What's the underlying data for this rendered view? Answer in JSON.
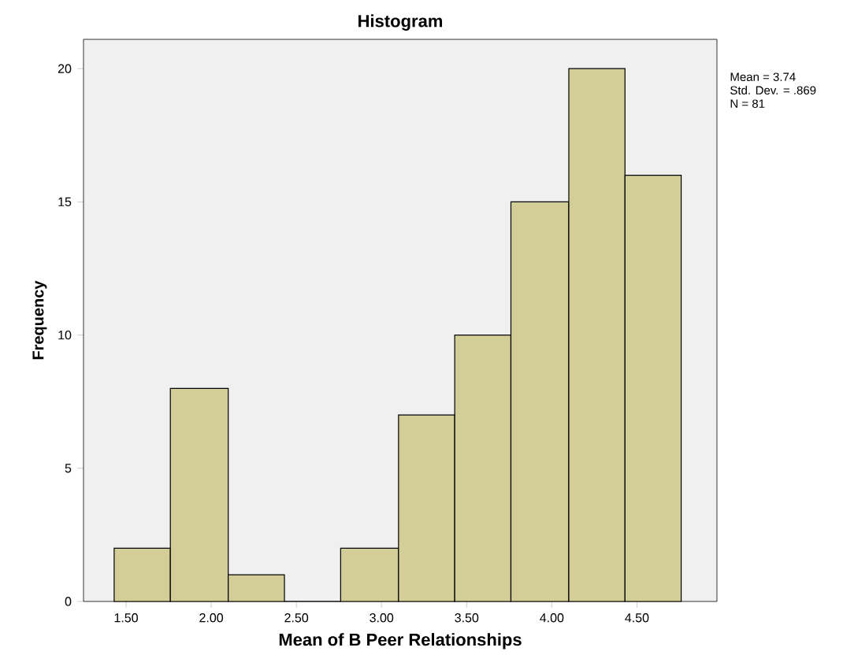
{
  "chart_data": {
    "type": "histogram",
    "title": "Histogram",
    "xlabel": "Mean of B Peer Relationships",
    "ylabel": "Frequency",
    "bins": [
      1.43,
      1.76,
      2.1,
      2.43,
      2.76,
      3.1,
      3.43,
      3.76,
      4.1,
      4.43,
      4.76
    ],
    "values": [
      2,
      8,
      1,
      0,
      2,
      7,
      10,
      15,
      20,
      16
    ],
    "color": "#d3ce97",
    "xlim": [
      1.25,
      4.97
    ],
    "ylim": [
      0,
      21.1
    ],
    "xticks": [
      {
        "value": 1.5,
        "label": "1.50"
      },
      {
        "value": 2.0,
        "label": "2.00"
      },
      {
        "value": 2.5,
        "label": "2.50"
      },
      {
        "value": 3.0,
        "label": "3.00"
      },
      {
        "value": 3.5,
        "label": "3.50"
      },
      {
        "value": 4.0,
        "label": "4.00"
      },
      {
        "value": 4.5,
        "label": "4.50"
      }
    ],
    "yticks": [
      0,
      5,
      10,
      15,
      20
    ],
    "annotations": [
      "Mean = 3.74",
      "Std. Dev. = .869",
      "N = 81"
    ],
    "grid": false
  }
}
